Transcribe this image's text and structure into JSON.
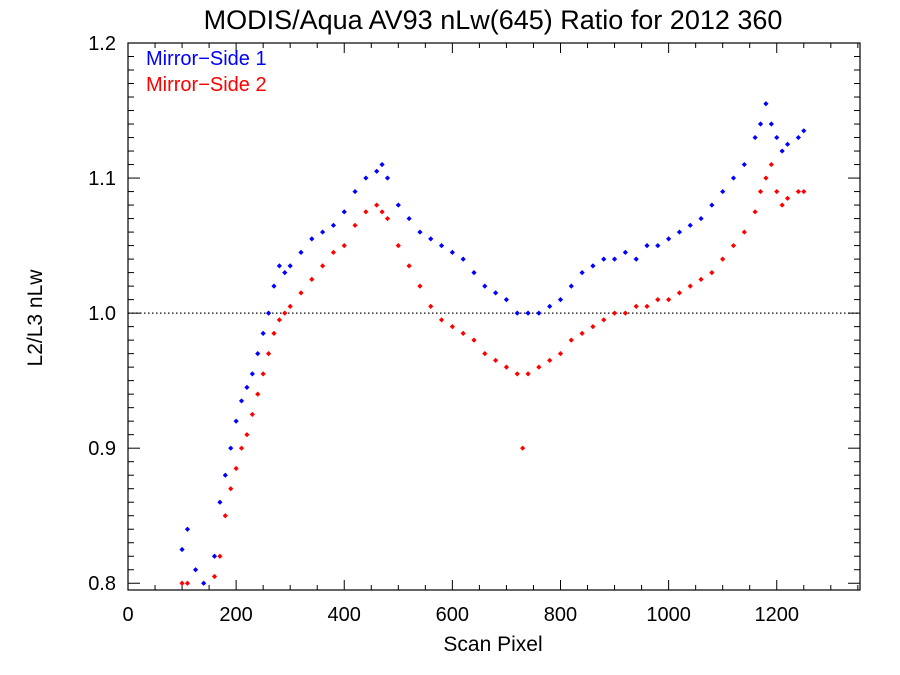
{
  "chart_data": {
    "type": "scatter",
    "title": "MODIS/Aqua AV93 nLw(645) Ratio for 2012 360",
    "xlabel": "Scan Pixel",
    "ylabel": "L2/L3 nLw",
    "xlim": [
      0,
      1354
    ],
    "ylim": [
      0.795,
      1.2
    ],
    "xticks": [
      0,
      200,
      400,
      600,
      800,
      1000,
      1200
    ],
    "xtick_labels": [
      "0",
      "200",
      "400",
      "600",
      "800",
      "1000",
      "1200"
    ],
    "yticks": [
      0.8,
      0.9,
      1.0,
      1.1,
      1.2
    ],
    "ytick_labels": [
      "0.8",
      "0.9",
      "1.0",
      "1.1",
      "1.2"
    ],
    "reference_line": {
      "y": 1.0,
      "style": "dotted"
    },
    "legend_placement": "top-left",
    "series": [
      {
        "name": "Mirror−Side 1",
        "color": "#0000ff",
        "x": [
          100,
          110,
          125,
          140,
          160,
          170,
          180,
          190,
          200,
          210,
          220,
          230,
          240,
          250,
          260,
          270,
          280,
          290,
          300,
          320,
          340,
          360,
          380,
          400,
          420,
          440,
          460,
          470,
          480,
          500,
          520,
          540,
          560,
          580,
          600,
          620,
          640,
          660,
          680,
          700,
          720,
          740,
          760,
          780,
          800,
          820,
          840,
          860,
          880,
          900,
          920,
          940,
          960,
          980,
          1000,
          1020,
          1040,
          1060,
          1080,
          1100,
          1120,
          1140,
          1160,
          1170,
          1180,
          1190,
          1200,
          1210,
          1220,
          1240,
          1250
        ],
        "y": [
          0.825,
          0.84,
          0.81,
          0.8,
          0.82,
          0.86,
          0.88,
          0.9,
          0.92,
          0.935,
          0.945,
          0.955,
          0.97,
          0.985,
          1.0,
          1.02,
          1.035,
          1.03,
          1.035,
          1.045,
          1.055,
          1.06,
          1.065,
          1.075,
          1.09,
          1.1,
          1.105,
          1.11,
          1.1,
          1.08,
          1.07,
          1.06,
          1.055,
          1.05,
          1.045,
          1.04,
          1.03,
          1.02,
          1.015,
          1.01,
          1.0,
          1.0,
          1.0,
          1.005,
          1.01,
          1.02,
          1.03,
          1.035,
          1.04,
          1.04,
          1.045,
          1.04,
          1.05,
          1.05,
          1.055,
          1.06,
          1.065,
          1.07,
          1.08,
          1.09,
          1.1,
          1.11,
          1.13,
          1.14,
          1.155,
          1.14,
          1.13,
          1.12,
          1.125,
          1.13,
          1.135
        ]
      },
      {
        "name": "Mirror−Side 2",
        "color": "#ff0000",
        "x": [
          100,
          110,
          160,
          170,
          180,
          190,
          200,
          210,
          220,
          230,
          240,
          250,
          260,
          270,
          280,
          290,
          300,
          320,
          340,
          360,
          380,
          400,
          420,
          440,
          460,
          470,
          480,
          500,
          520,
          540,
          560,
          580,
          600,
          620,
          640,
          660,
          680,
          700,
          720,
          730,
          740,
          760,
          780,
          800,
          820,
          840,
          860,
          880,
          900,
          920,
          940,
          960,
          980,
          1000,
          1020,
          1040,
          1060,
          1080,
          1100,
          1120,
          1140,
          1160,
          1170,
          1180,
          1190,
          1200,
          1210,
          1220,
          1240,
          1250
        ],
        "y": [
          0.8,
          0.8,
          0.805,
          0.82,
          0.85,
          0.87,
          0.885,
          0.9,
          0.91,
          0.925,
          0.94,
          0.955,
          0.97,
          0.985,
          0.995,
          1.0,
          1.005,
          1.015,
          1.025,
          1.035,
          1.045,
          1.05,
          1.065,
          1.075,
          1.08,
          1.075,
          1.07,
          1.05,
          1.035,
          1.02,
          1.005,
          0.995,
          0.99,
          0.985,
          0.98,
          0.97,
          0.965,
          0.96,
          0.955,
          0.9,
          0.955,
          0.96,
          0.965,
          0.97,
          0.98,
          0.985,
          0.99,
          0.995,
          1.0,
          1.0,
          1.005,
          1.005,
          1.01,
          1.01,
          1.015,
          1.02,
          1.025,
          1.03,
          1.04,
          1.05,
          1.06,
          1.075,
          1.09,
          1.1,
          1.11,
          1.09,
          1.08,
          1.085,
          1.09,
          1.09
        ]
      }
    ]
  }
}
